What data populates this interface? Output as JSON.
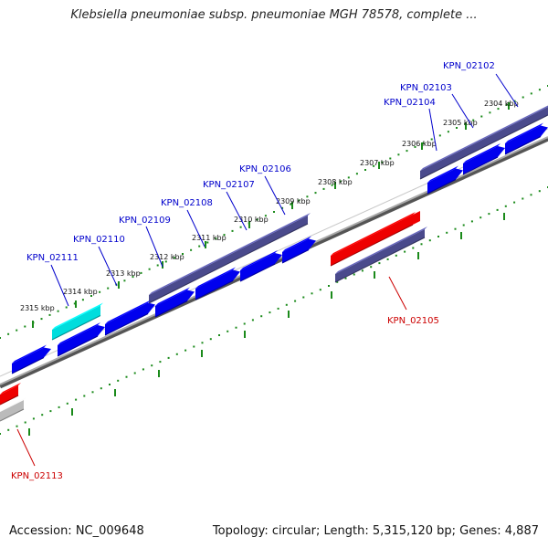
{
  "title": "Klebsiella pneumoniae subsp. pneumoniae MGH 78578, complete ...",
  "footer": {
    "accession": "Accession: NC_009648",
    "summary": "Topology: circular; Length: 5,315,120 bp; Genes: 4,887"
  },
  "colors": {
    "forward_gene": "#0000ee",
    "operon": "#4a4a8c",
    "highlight_gene": "#00dddd",
    "rna_gene": "#ee0000",
    "grey_gene": "#bbbbbb",
    "backbone": "#808080",
    "tick": "#1a8a1a",
    "blue_label": "#0000cc",
    "red_label": "#cc0000"
  },
  "scale_labels": [
    "2304 kbp",
    "2305 kbp",
    "2306 kbp",
    "2307 kbp",
    "2308 kbp",
    "2309 kbp",
    "2310 kbp",
    "2311 kbp",
    "2312 kbp",
    "2313 kbp",
    "2314 kbp",
    "2315 kbp"
  ],
  "gene_labels": [
    {
      "text": "KPN_02102",
      "color": "blue"
    },
    {
      "text": "KPN_02103",
      "color": "blue"
    },
    {
      "text": "KPN_02104",
      "color": "blue"
    },
    {
      "text": "KPN_02106",
      "color": "blue"
    },
    {
      "text": "KPN_02107",
      "color": "blue"
    },
    {
      "text": "KPN_02108",
      "color": "blue"
    },
    {
      "text": "KPN_02109",
      "color": "blue"
    },
    {
      "text": "KPN_02110",
      "color": "blue"
    },
    {
      "text": "KPN_02111",
      "color": "blue"
    },
    {
      "text": "KPN_02105",
      "color": "red"
    },
    {
      "text": "KPN_02113",
      "color": "red"
    }
  ]
}
